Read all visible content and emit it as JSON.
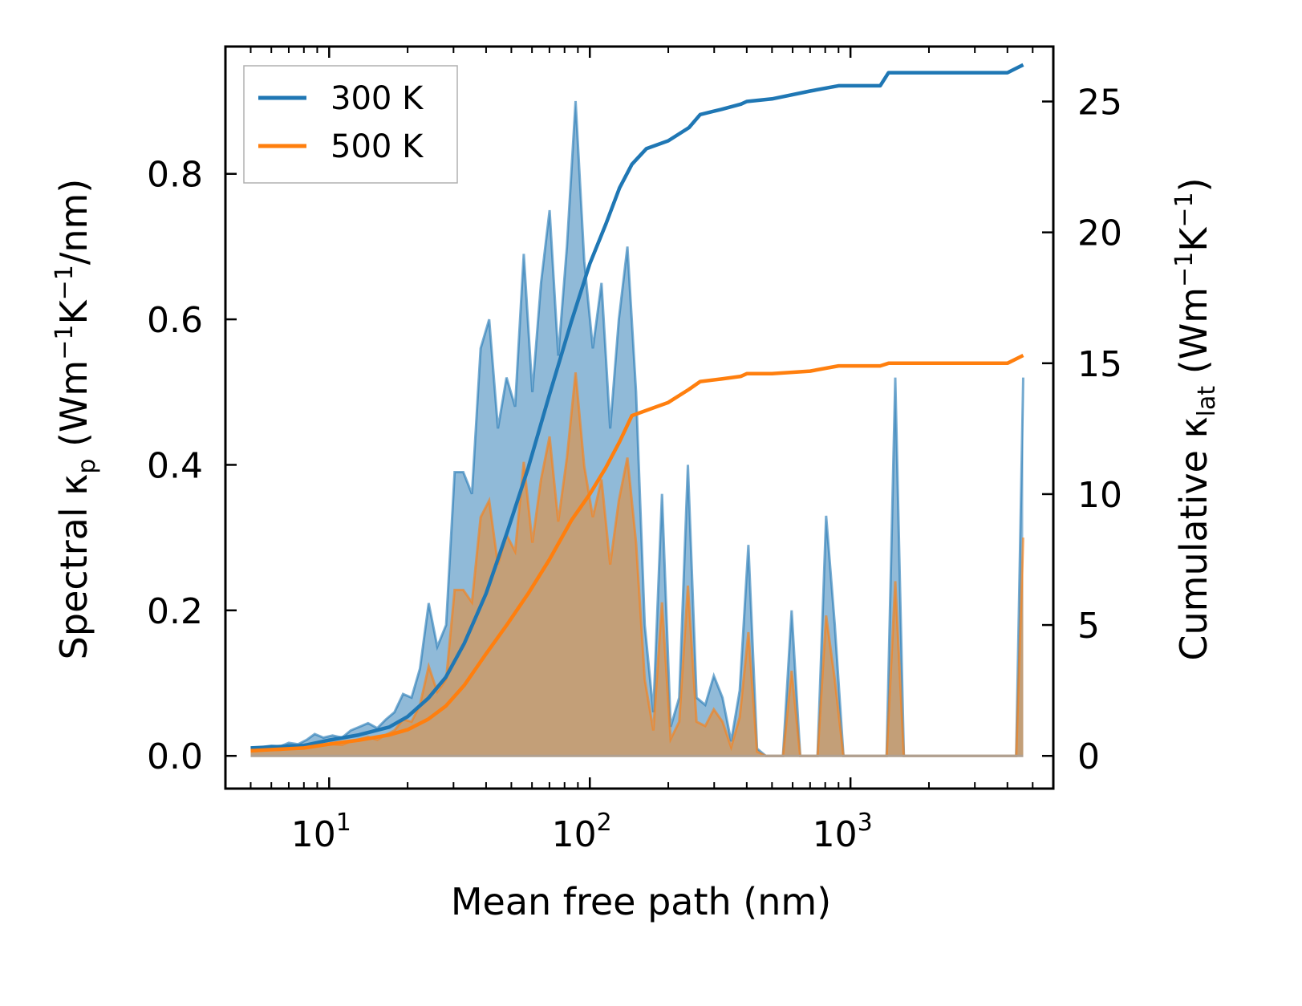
{
  "chart_data": {
    "type": "line",
    "title": "",
    "xlabel": "Mean free path (nm)",
    "x_scale": "log",
    "xlim": [
      4,
      6000
    ],
    "x_ticks": [
      {
        "base": "10",
        "exp": "1",
        "value": 10
      },
      {
        "base": "10",
        "exp": "2",
        "value": 100
      },
      {
        "base": "10",
        "exp": "3",
        "value": 1000
      }
    ],
    "y_left": {
      "label_main": "Spectral κ",
      "label_sub": "p",
      "label_units": [
        {
          "t": " (Wm",
          "sup": false
        },
        {
          "t": "−1",
          "sup": true
        },
        {
          "t": "K",
          "sup": false
        },
        {
          "t": "−1",
          "sup": true
        },
        {
          "t": "/nm)",
          "sup": false
        }
      ],
      "lim": [
        -0.045,
        0.975
      ],
      "ticks": [
        "0.0",
        "0.2",
        "0.4",
        "0.6",
        "0.8"
      ]
    },
    "y_right": {
      "label_main": "Cumulative κ",
      "label_sub": "lat",
      "label_units": [
        {
          "t": " (Wm",
          "sup": false
        },
        {
          "t": "−1",
          "sup": true
        },
        {
          "t": "K",
          "sup": false
        },
        {
          "t": "−1",
          "sup": true
        },
        {
          "t": ")",
          "sup": false
        }
      ],
      "lim": [
        -1.25,
        27.1
      ],
      "ticks": [
        "0",
        "5",
        "10",
        "15",
        "20",
        "25"
      ]
    },
    "legend": {
      "position": "top-left",
      "entries": [
        "300 K",
        "500 K"
      ]
    },
    "colors": {
      "s300": "#1f77b4",
      "s500": "#ff7f0e",
      "fill300": "#8ab6d6",
      "fill500": "#c89c70"
    },
    "series": [
      {
        "name": "300 K",
        "spectral": [
          [
            5.0,
            0.01
          ],
          [
            5.5,
            0.012
          ],
          [
            6.0,
            0.014
          ],
          [
            6.5,
            0.013
          ],
          [
            7.0,
            0.018
          ],
          [
            7.6,
            0.016
          ],
          [
            8.2,
            0.022
          ],
          [
            8.8,
            0.03
          ],
          [
            9.5,
            0.025
          ],
          [
            10.3,
            0.028
          ],
          [
            11.2,
            0.025
          ],
          [
            12.1,
            0.035
          ],
          [
            13.1,
            0.04
          ],
          [
            14.1,
            0.045
          ],
          [
            15.3,
            0.038
          ],
          [
            16.5,
            0.05
          ],
          [
            17.8,
            0.06
          ],
          [
            19.2,
            0.085
          ],
          [
            20.7,
            0.08
          ],
          [
            22.3,
            0.12
          ],
          [
            24.1,
            0.21
          ],
          [
            26.0,
            0.15
          ],
          [
            28.1,
            0.18
          ],
          [
            30.3,
            0.39
          ],
          [
            32.7,
            0.39
          ],
          [
            35.3,
            0.36
          ],
          [
            38.1,
            0.56
          ],
          [
            41.1,
            0.6
          ],
          [
            44.4,
            0.45
          ],
          [
            47.9,
            0.52
          ],
          [
            51.7,
            0.48
          ],
          [
            55.8,
            0.69
          ],
          [
            60.2,
            0.5
          ],
          [
            65.0,
            0.65
          ],
          [
            70.1,
            0.75
          ],
          [
            75.7,
            0.55
          ],
          [
            81.7,
            0.7
          ],
          [
            88.2,
            0.9
          ],
          [
            95.2,
            0.68
          ],
          [
            102.7,
            0.56
          ],
          [
            110.9,
            0.65
          ],
          [
            119.7,
            0.45
          ],
          [
            129.2,
            0.6
          ],
          [
            139.4,
            0.7
          ],
          [
            150.5,
            0.5
          ],
          [
            162.4,
            0.18
          ],
          [
            175.3,
            0.06
          ],
          [
            189.2,
            0.36
          ],
          [
            204.2,
            0.04
          ],
          [
            220.4,
            0.08
          ],
          [
            237.9,
            0.4
          ],
          [
            256.8,
            0.08
          ],
          [
            277.1,
            0.07
          ],
          [
            299.1,
            0.11
          ],
          [
            322.8,
            0.08
          ],
          [
            348.4,
            0.02
          ],
          [
            376.0,
            0.09
          ],
          [
            405.9,
            0.29
          ],
          [
            438.1,
            0.01
          ],
          [
            472.8,
            0.0
          ],
          [
            510.3,
            0.0
          ],
          [
            550.8,
            0.0
          ],
          [
            594.5,
            0.2
          ],
          [
            641.6,
            0.0
          ],
          [
            692.5,
            0.0
          ],
          [
            747.4,
            0.0
          ],
          [
            806.6,
            0.33
          ],
          [
            870.6,
            0.18
          ],
          [
            939.6,
            0.0
          ],
          [
            1014.0,
            0.0
          ],
          [
            1094.0,
            0.0
          ],
          [
            1181.0,
            0.0
          ],
          [
            1275.0,
            0.0
          ],
          [
            1376.0,
            0.0
          ],
          [
            1485.0,
            0.52
          ],
          [
            1603.0,
            0.0
          ],
          [
            1730.0,
            0.0
          ],
          [
            1867.0,
            0.0
          ],
          [
            2015.0,
            0.0
          ],
          [
            2175.0,
            0.0
          ],
          [
            2347.0,
            0.0
          ],
          [
            2533.0,
            0.0
          ],
          [
            2734.0,
            0.0
          ],
          [
            2951.0,
            0.0
          ],
          [
            3185.0,
            0.0
          ],
          [
            3437.0,
            0.0
          ],
          [
            3710.0,
            0.0
          ],
          [
            4004.0,
            0.0
          ],
          [
            4322.0,
            0.0
          ],
          [
            4600.0,
            0.52
          ]
        ],
        "cumulative": [
          [
            5.0,
            0.3
          ],
          [
            8.0,
            0.4
          ],
          [
            10.0,
            0.6
          ],
          [
            13.0,
            0.8
          ],
          [
            17.0,
            1.1
          ],
          [
            20.0,
            1.5
          ],
          [
            24.0,
            2.2
          ],
          [
            28.0,
            3.0
          ],
          [
            33.0,
            4.3
          ],
          [
            40.0,
            6.2
          ],
          [
            48.0,
            8.5
          ],
          [
            58.0,
            11.0
          ],
          [
            70.0,
            13.8
          ],
          [
            85.0,
            16.6
          ],
          [
            100.0,
            18.8
          ],
          [
            115.0,
            20.3
          ],
          [
            130.0,
            21.7
          ],
          [
            145.0,
            22.6
          ],
          [
            165.0,
            23.2
          ],
          [
            200.0,
            23.5
          ],
          [
            240.0,
            24.0
          ],
          [
            265.0,
            24.5
          ],
          [
            320.0,
            24.7
          ],
          [
            380.0,
            24.9
          ],
          [
            400.0,
            25.0
          ],
          [
            500.0,
            25.1
          ],
          [
            700.0,
            25.4
          ],
          [
            900.0,
            25.6
          ],
          [
            1300.0,
            25.6
          ],
          [
            1400.0,
            26.1
          ],
          [
            1800.0,
            26.1
          ],
          [
            4000.0,
            26.1
          ],
          [
            4600.0,
            26.4
          ]
        ]
      },
      {
        "name": "500 K",
        "spectral": [
          [
            5.0,
            0.006
          ],
          [
            5.5,
            0.007
          ],
          [
            6.0,
            0.008
          ],
          [
            6.5,
            0.008
          ],
          [
            7.0,
            0.01
          ],
          [
            7.6,
            0.01
          ],
          [
            8.2,
            0.013
          ],
          [
            8.8,
            0.017
          ],
          [
            9.5,
            0.015
          ],
          [
            10.3,
            0.016
          ],
          [
            11.2,
            0.015
          ],
          [
            12.1,
            0.02
          ],
          [
            13.1,
            0.023
          ],
          [
            14.1,
            0.026
          ],
          [
            15.3,
            0.022
          ],
          [
            16.5,
            0.029
          ],
          [
            17.8,
            0.035
          ],
          [
            19.2,
            0.05
          ],
          [
            20.7,
            0.047
          ],
          [
            22.3,
            0.07
          ],
          [
            24.1,
            0.123
          ],
          [
            26.0,
            0.088
          ],
          [
            28.1,
            0.105
          ],
          [
            30.3,
            0.228
          ],
          [
            32.7,
            0.228
          ],
          [
            35.3,
            0.211
          ],
          [
            38.1,
            0.328
          ],
          [
            41.1,
            0.351
          ],
          [
            44.4,
            0.263
          ],
          [
            47.9,
            0.304
          ],
          [
            51.7,
            0.281
          ],
          [
            55.8,
            0.404
          ],
          [
            60.2,
            0.293
          ],
          [
            65.0,
            0.38
          ],
          [
            70.1,
            0.439
          ],
          [
            75.7,
            0.322
          ],
          [
            81.7,
            0.41
          ],
          [
            88.2,
            0.527
          ],
          [
            95.2,
            0.398
          ],
          [
            102.7,
            0.328
          ],
          [
            110.9,
            0.38
          ],
          [
            119.7,
            0.263
          ],
          [
            129.2,
            0.351
          ],
          [
            139.4,
            0.41
          ],
          [
            150.5,
            0.293
          ],
          [
            162.4,
            0.105
          ],
          [
            175.3,
            0.035
          ],
          [
            189.2,
            0.211
          ],
          [
            204.2,
            0.023
          ],
          [
            220.4,
            0.047
          ],
          [
            237.9,
            0.234
          ],
          [
            256.8,
            0.047
          ],
          [
            277.1,
            0.041
          ],
          [
            299.1,
            0.064
          ],
          [
            322.8,
            0.047
          ],
          [
            348.4,
            0.012
          ],
          [
            376.0,
            0.053
          ],
          [
            405.9,
            0.17
          ],
          [
            438.1,
            0.006
          ],
          [
            472.8,
            0.0
          ],
          [
            510.3,
            0.0
          ],
          [
            550.8,
            0.0
          ],
          [
            594.5,
            0.117
          ],
          [
            641.6,
            0.0
          ],
          [
            692.5,
            0.0
          ],
          [
            747.4,
            0.0
          ],
          [
            806.6,
            0.193
          ],
          [
            870.6,
            0.105
          ],
          [
            939.6,
            0.0
          ],
          [
            1014.0,
            0.0
          ],
          [
            1094.0,
            0.0
          ],
          [
            1181.0,
            0.0
          ],
          [
            1275.0,
            0.0
          ],
          [
            1376.0,
            0.0
          ],
          [
            1485.0,
            0.24
          ],
          [
            1603.0,
            0.0
          ],
          [
            1730.0,
            0.0
          ],
          [
            1867.0,
            0.0
          ],
          [
            2015.0,
            0.0
          ],
          [
            2175.0,
            0.0
          ],
          [
            2347.0,
            0.0
          ],
          [
            2533.0,
            0.0
          ],
          [
            2734.0,
            0.0
          ],
          [
            2951.0,
            0.0
          ],
          [
            3185.0,
            0.0
          ],
          [
            3437.0,
            0.0
          ],
          [
            3710.0,
            0.0
          ],
          [
            4004.0,
            0.0
          ],
          [
            4322.0,
            0.0
          ],
          [
            4600.0,
            0.3
          ]
        ],
        "cumulative": [
          [
            5.0,
            0.2
          ],
          [
            8.0,
            0.3
          ],
          [
            10.0,
            0.45
          ],
          [
            13.0,
            0.6
          ],
          [
            17.0,
            0.8
          ],
          [
            20.0,
            1.0
          ],
          [
            24.0,
            1.4
          ],
          [
            28.0,
            1.9
          ],
          [
            33.0,
            2.7
          ],
          [
            40.0,
            3.9
          ],
          [
            48.0,
            5.0
          ],
          [
            58.0,
            6.2
          ],
          [
            70.0,
            7.5
          ],
          [
            85.0,
            9.0
          ],
          [
            100.0,
            10.0
          ],
          [
            115.0,
            11.0
          ],
          [
            130.0,
            12.0
          ],
          [
            145.0,
            13.0
          ],
          [
            165.0,
            13.2
          ],
          [
            200.0,
            13.5
          ],
          [
            240.0,
            14.0
          ],
          [
            265.0,
            14.3
          ],
          [
            320.0,
            14.4
          ],
          [
            380.0,
            14.5
          ],
          [
            400.0,
            14.6
          ],
          [
            500.0,
            14.6
          ],
          [
            700.0,
            14.7
          ],
          [
            900.0,
            14.9
          ],
          [
            1300.0,
            14.9
          ],
          [
            1400.0,
            15.0
          ],
          [
            1800.0,
            15.0
          ],
          [
            4000.0,
            15.0
          ],
          [
            4600.0,
            15.3
          ]
        ]
      }
    ]
  }
}
